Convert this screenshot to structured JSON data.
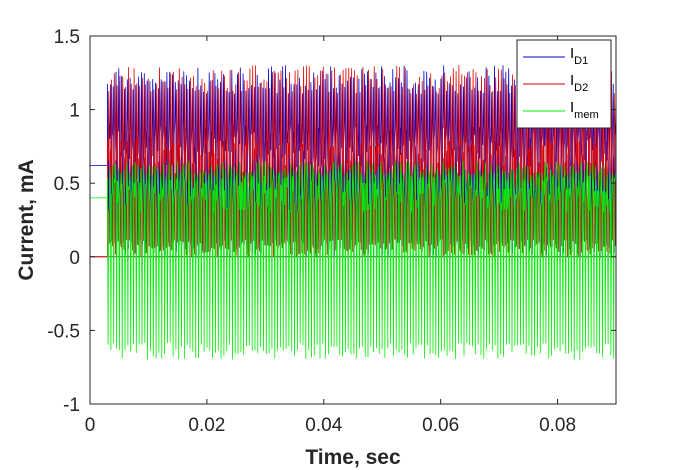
{
  "chart_data": {
    "type": "line",
    "title": "",
    "xlabel": "Time, sec",
    "ylabel": "Current, mA",
    "xlim": [
      0,
      0.09
    ],
    "ylim": [
      -1,
      1.5
    ],
    "x_ticks": [
      0,
      0.02,
      0.04,
      0.06,
      0.08
    ],
    "x_tick_labels": [
      "0",
      "0.02",
      "0.04",
      "0.06",
      "0.08"
    ],
    "y_ticks": [
      -1,
      -0.5,
      0,
      0.5,
      1,
      1.5
    ],
    "y_tick_labels": [
      "-1",
      "-0.5",
      "0",
      "0.5",
      "1",
      "1.5"
    ],
    "grid": false,
    "legend_position": "top-right",
    "series": [
      {
        "name": "I_D1",
        "label_main": "I",
        "label_sub": "D1",
        "color": "#0000cc",
        "initial_value": 0.62,
        "oscillation_start": 0.003,
        "spike_peak": 1.3,
        "band_low": 0.6,
        "band_high": 0.9,
        "trough": 0.0
      },
      {
        "name": "I_D2",
        "label_main": "I",
        "label_sub": "D2",
        "color": "#dd0000",
        "initial_value": 0.0,
        "oscillation_start": 0.003,
        "spike_peak": 1.3,
        "band_low": 0.45,
        "band_high": 0.8,
        "trough": 0.0
      },
      {
        "name": "I_mem",
        "label_main": "I",
        "label_sub": "mem",
        "color": "#00ee00",
        "initial_value": 0.4,
        "oscillation_start": 0.003,
        "spike_peak": 0.65,
        "band_low": 0.3,
        "band_high": 0.55,
        "trough": -0.7
      }
    ]
  }
}
